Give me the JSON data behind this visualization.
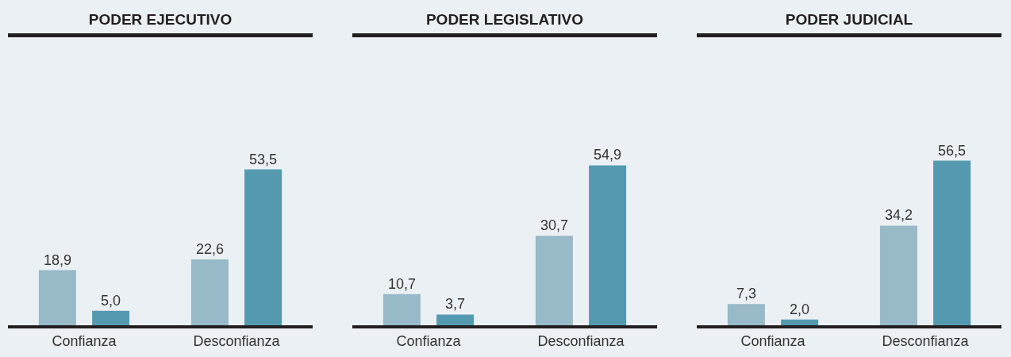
{
  "chart_data": [
    {
      "type": "bar",
      "title": "PODER EJECUTIVO",
      "categories": [
        "Confianza",
        "Desconfianza"
      ],
      "series": [
        {
          "color": "#97b9c8",
          "values": [
            18.9,
            22.6
          ],
          "value_labels": [
            "18,9",
            "22,6"
          ]
        },
        {
          "color": "#5599b0",
          "values": [
            5.0,
            53.5
          ],
          "value_labels": [
            "5,0",
            "53,5"
          ]
        }
      ]
    },
    {
      "type": "bar",
      "title": "PODER LEGISLATIVO",
      "categories": [
        "Confianza",
        "Desconfianza"
      ],
      "series": [
        {
          "color": "#97b9c8",
          "values": [
            10.7,
            30.7
          ],
          "value_labels": [
            "10,7",
            "30,7"
          ]
        },
        {
          "color": "#5599b0",
          "values": [
            3.7,
            54.9
          ],
          "value_labels": [
            "3,7",
            "54,9"
          ]
        }
      ]
    },
    {
      "type": "bar",
      "title": "PODER JUDICIAL",
      "categories": [
        "Confianza",
        "Desconfianza"
      ],
      "series": [
        {
          "color": "#97b9c8",
          "values": [
            7.3,
            34.2
          ],
          "value_labels": [
            "7,3",
            "34,2"
          ]
        },
        {
          "color": "#5599b0",
          "values": [
            2.0,
            56.5
          ],
          "value_labels": [
            "2,0",
            "56,5"
          ]
        }
      ]
    }
  ]
}
